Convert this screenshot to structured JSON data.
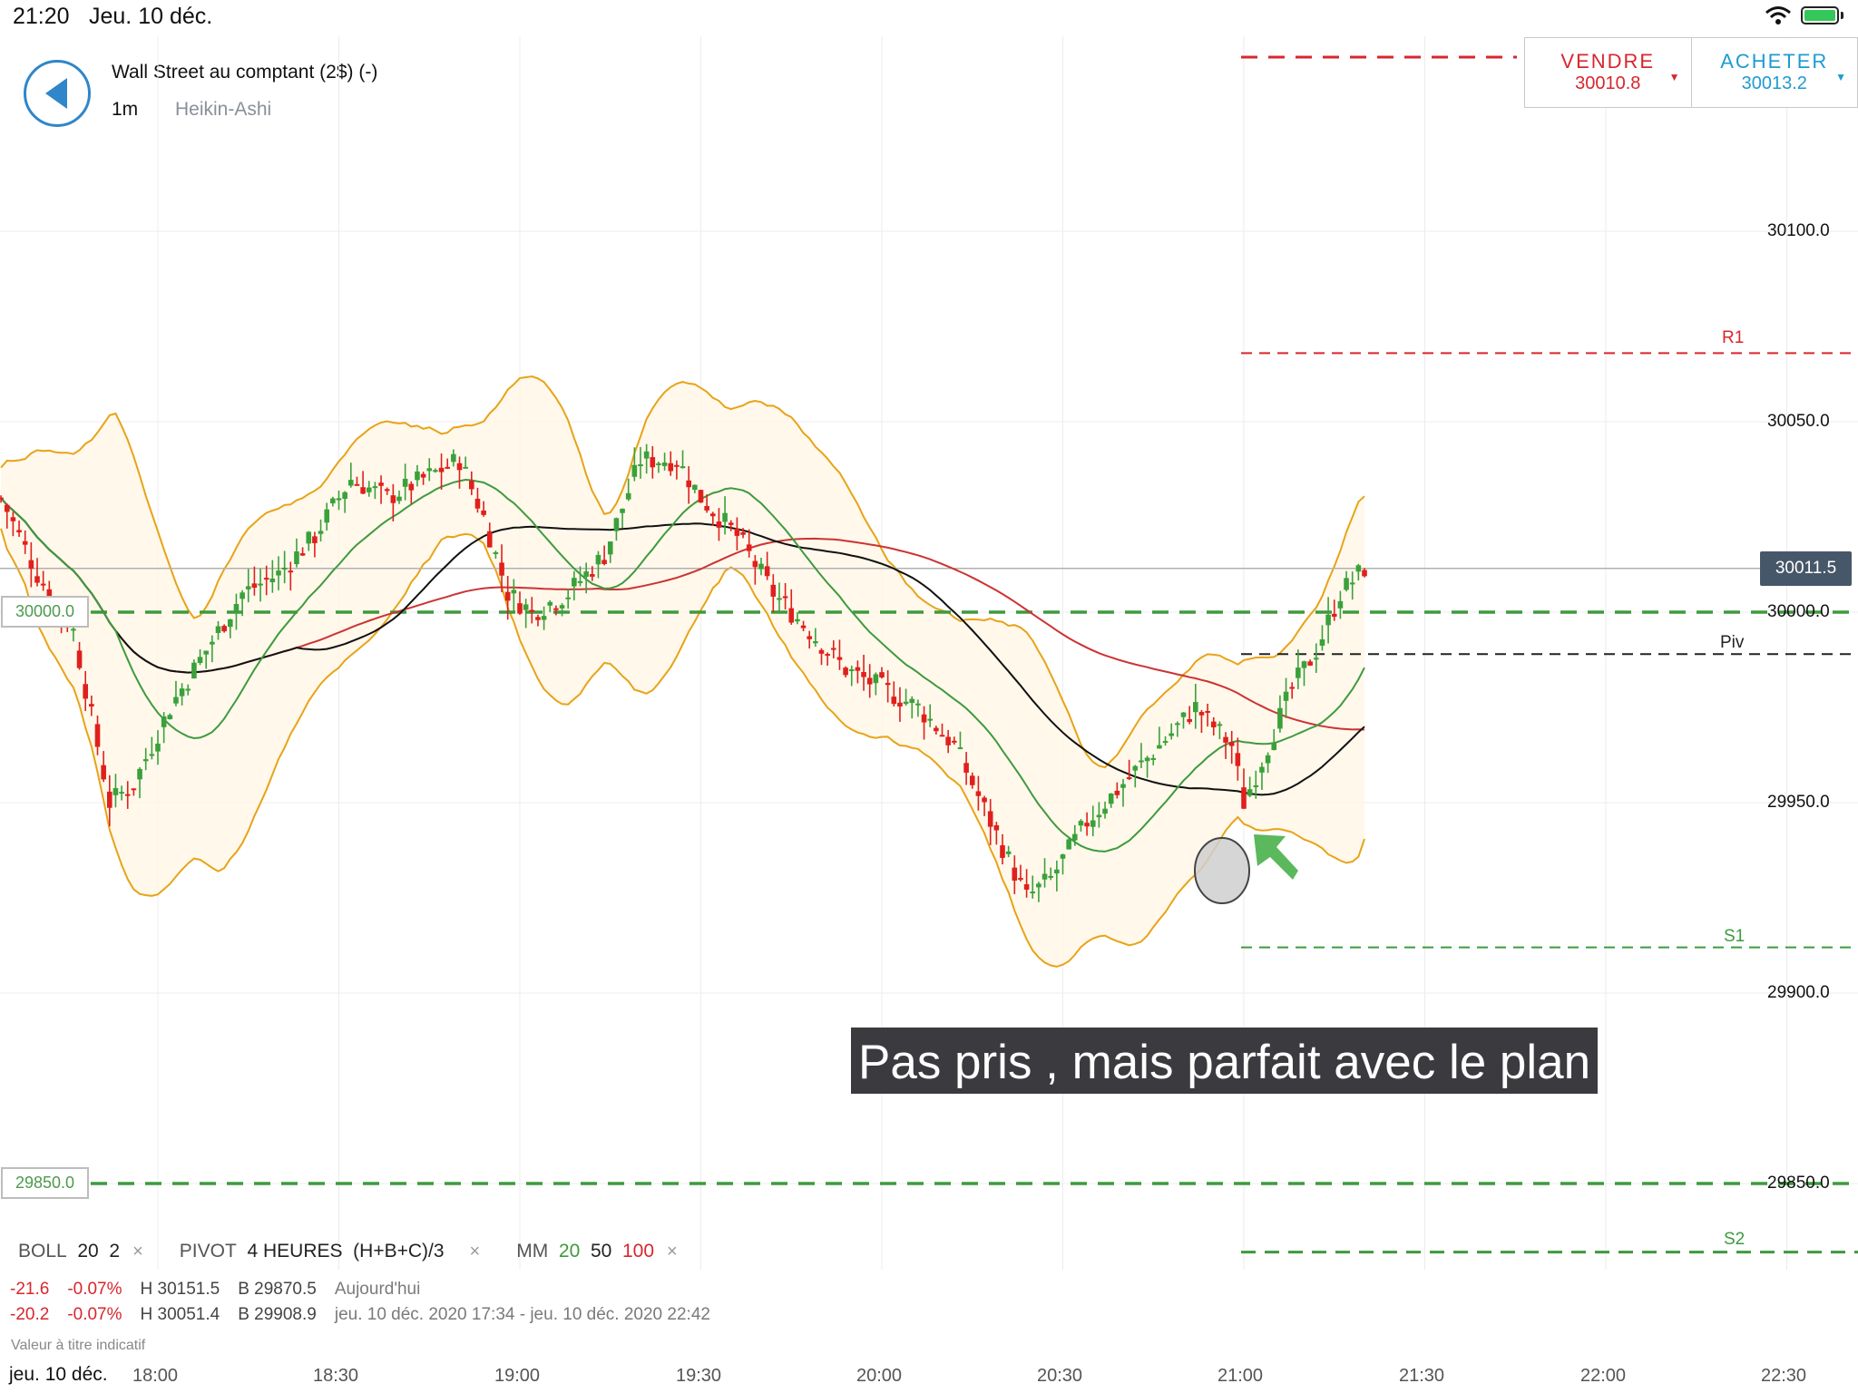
{
  "status_bar": {
    "time": "21:20",
    "date": "Jeu. 10 déc."
  },
  "header": {
    "instrument": "Wall Street au comptant (2$) (-)",
    "timeframe": "1m",
    "chart_type": "Heikin-Ashi"
  },
  "trade": {
    "sell_label": "VENDRE",
    "sell_price": "30010.8",
    "buy_label": "ACHETER",
    "buy_price": "30013.2"
  },
  "price_axis": {
    "labels": [
      "30100.0",
      "30050.0",
      "30000.0",
      "29950.0",
      "29900.0",
      "29850.0"
    ],
    "current_price": "30011.5"
  },
  "levels": {
    "order_1": "30000.0",
    "order_2": "29850.0",
    "pivot_labels": [
      "R1",
      "Piv",
      "S1",
      "S2"
    ]
  },
  "annotation": "Pas pris , mais parfait avec le plan",
  "indicators": {
    "boll": "BOLL",
    "boll_period": "20",
    "boll_dev": "2",
    "pivot": "PIVOT",
    "pivot_period": "4 HEURES",
    "pivot_formula": "(H+B+C)/3",
    "mm": "MM",
    "mm_20": "20",
    "mm_50": "50",
    "mm_100": "100",
    "close_symbol": "×"
  },
  "stats": [
    {
      "change": "-21.6",
      "pct": "-0.07%",
      "high": "H 30151.5",
      "low": "B 29870.5",
      "period": "Aujourd'hui"
    },
    {
      "change": "-20.2",
      "pct": "-0.07%",
      "high": "H 30051.4",
      "low": "B 29908.9",
      "period": "jeu. 10 déc. 2020 17:34 - jeu. 10 déc. 2020 22:42"
    }
  ],
  "disclaimer": "Valeur à titre indicatif",
  "time_axis": {
    "date": "jeu. 10 déc.",
    "labels": [
      "18:00",
      "18:30",
      "19:00",
      "19:30",
      "20:00",
      "20:30",
      "21:00",
      "21:30",
      "22:00",
      "22:30"
    ]
  },
  "colors": {
    "up": "#3aa13a",
    "down": "#e0201c",
    "bollinger": "#e8a317",
    "mm20": "#3e9a3e",
    "mm50": "#111111",
    "mm100": "#cc3333",
    "accent": "#2f86c8"
  },
  "chart_data": {
    "type": "candlestick",
    "title": "",
    "x_labels": [
      "18:00",
      "18:30",
      "19:00",
      "19:30",
      "20:00",
      "20:30",
      "21:00",
      "21:30",
      "22:00",
      "22:30"
    ],
    "ylim": [
      29830,
      30125
    ],
    "y_ticks": [
      29850,
      29900,
      29950,
      30000,
      30050,
      30100
    ],
    "current_price": 30011.5,
    "pivot_levels": {
      "R1": 30068,
      "Piv": 29989,
      "S1": 29912,
      "S2": 29832
    },
    "order_levels": [
      30000.0,
      29850.0
    ],
    "close_path": [
      {
        "t": "17:34",
        "v": 30030
      },
      {
        "t": "17:40",
        "v": 30010
      },
      {
        "t": "17:46",
        "v": 29995
      },
      {
        "t": "17:52",
        "v": 29950
      },
      {
        "t": "17:56",
        "v": 29955
      },
      {
        "t": "18:02",
        "v": 29975
      },
      {
        "t": "18:08",
        "v": 29990
      },
      {
        "t": "18:14",
        "v": 30005
      },
      {
        "t": "18:20",
        "v": 30010
      },
      {
        "t": "18:26",
        "v": 30020
      },
      {
        "t": "18:32",
        "v": 30035
      },
      {
        "t": "18:38",
        "v": 30030
      },
      {
        "t": "18:44",
        "v": 30035
      },
      {
        "t": "18:50",
        "v": 30040
      },
      {
        "t": "18:54",
        "v": 30025
      },
      {
        "t": "18:58",
        "v": 30005
      },
      {
        "t": "19:02",
        "v": 30000
      },
      {
        "t": "19:08",
        "v": 30005
      },
      {
        "t": "19:14",
        "v": 30015
      },
      {
        "t": "19:20",
        "v": 30040
      },
      {
        "t": "19:26",
        "v": 30040
      },
      {
        "t": "19:30",
        "v": 30030
      },
      {
        "t": "19:36",
        "v": 30020
      },
      {
        "t": "19:42",
        "v": 30005
      },
      {
        "t": "19:48",
        "v": 29995
      },
      {
        "t": "19:54",
        "v": 29985
      },
      {
        "t": "20:00",
        "v": 29980
      },
      {
        "t": "20:06",
        "v": 29975
      },
      {
        "t": "20:12",
        "v": 29965
      },
      {
        "t": "20:18",
        "v": 29945
      },
      {
        "t": "20:24",
        "v": 29925
      },
      {
        "t": "20:28",
        "v": 29930
      },
      {
        "t": "20:34",
        "v": 29945
      },
      {
        "t": "20:40",
        "v": 29955
      },
      {
        "t": "20:46",
        "v": 29965
      },
      {
        "t": "20:52",
        "v": 29975
      },
      {
        "t": "20:58",
        "v": 29965
      },
      {
        "t": "21:00",
        "v": 29950
      },
      {
        "t": "21:04",
        "v": 29965
      },
      {
        "t": "21:08",
        "v": 29980
      },
      {
        "t": "21:12",
        "v": 29990
      },
      {
        "t": "21:16",
        "v": 30005
      },
      {
        "t": "21:20",
        "v": 30011.5
      }
    ],
    "series": [
      {
        "name": "MM 20",
        "values": [
          30040,
          30030,
          29990,
          29960,
          29965,
          29990,
          30015,
          30020,
          30010,
          30030,
          30030,
          30020,
          29990,
          29975,
          29955,
          29950,
          29960,
          29975,
          29965,
          29985
        ]
      },
      {
        "name": "MM 50",
        "values": [
          30035,
          30025,
          30000,
          29990,
          29995,
          30010,
          30015,
          30020,
          30015,
          29995,
          29980,
          29960,
          29952,
          29955,
          29965
        ]
      },
      {
        "name": "MM 100",
        "values": [
          30030,
          30020,
          30015,
          30015,
          30012,
          30005,
          30003,
          30000,
          29992,
          29985,
          29975,
          29970,
          29965
        ]
      }
    ]
  }
}
